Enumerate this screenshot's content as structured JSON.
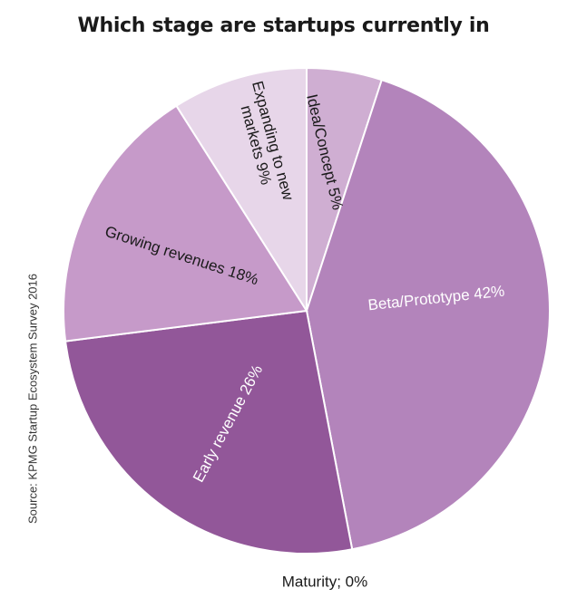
{
  "chart_data": {
    "type": "pie",
    "title": "Which stage are startups currently in",
    "source": "Source: KPMG Startup Ecosystem Survey 2016",
    "start_angle_deg": 0,
    "direction": "clockwise",
    "slices": [
      {
        "name": "Idea/Concept",
        "value": 5,
        "label": "Idea/Concept 5%",
        "color": "#cfaed2",
        "label_color": "#1a1a1a"
      },
      {
        "name": "Beta/Prototype",
        "value": 42,
        "label": "Beta/Prototype 42%",
        "color": "#b384bb",
        "label_color": "#ffffff"
      },
      {
        "name": "Maturity",
        "value": 0,
        "label": "Maturity; 0%",
        "color": "#b384bb",
        "label_color": "#1a1a1a"
      },
      {
        "name": "Early revenue",
        "value": 26,
        "label": "Early revenue 26%",
        "color": "#925799",
        "label_color": "#ffffff"
      },
      {
        "name": "Growing revenues",
        "value": 18,
        "label": "Growing revenues 18%",
        "color": "#c69ac9",
        "label_color": "#1a1a1a"
      },
      {
        "name": "Expanding to new markets",
        "value": 9,
        "label_lines": [
          "Expanding to new",
          "markets 9%"
        ],
        "color": "#e7d6e9",
        "label_color": "#1a1a1a"
      }
    ]
  }
}
